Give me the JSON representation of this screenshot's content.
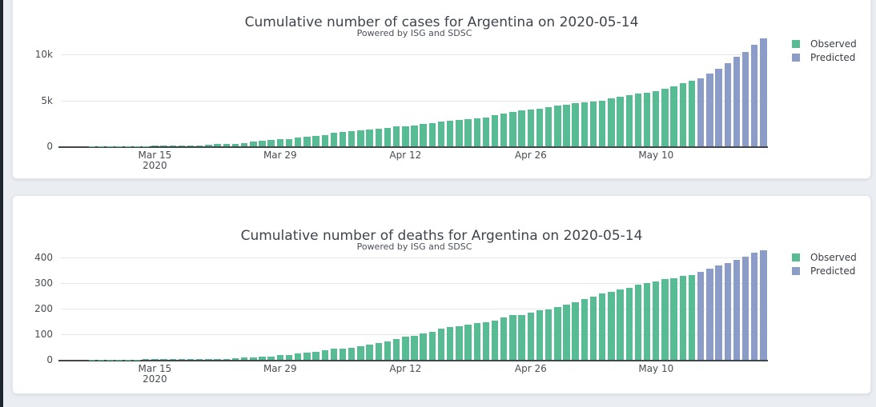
{
  "page": {
    "background_color": "#eaedf2",
    "card_color": "#ffffff",
    "edge_strip_color": "#1d262e"
  },
  "chart_data": [
    {
      "type": "bar",
      "title": "Cumulative number of cases for Argentina on 2020-05-14",
      "subtitle": "Powered by ISG and SDSC",
      "xlabel": "",
      "ylabel": "",
      "x_start_date": "2020-03-05",
      "x_frequency": "daily",
      "x_tick_labels": [
        {
          "day_index": 10,
          "label": "Mar 15",
          "sublabel": "2020"
        },
        {
          "day_index": 24,
          "label": "Mar 29",
          "sublabel": ""
        },
        {
          "day_index": 38,
          "label": "Apr 12",
          "sublabel": ""
        },
        {
          "day_index": 52,
          "label": "Apr 26",
          "sublabel": ""
        },
        {
          "day_index": 66,
          "label": "May 10",
          "sublabel": ""
        }
      ],
      "ylim": [
        0,
        12400
      ],
      "y_ticks": [
        {
          "value": 0,
          "label": "0"
        },
        {
          "value": 5000,
          "label": "5k"
        },
        {
          "value": 10000,
          "label": "10k"
        }
      ],
      "grid": true,
      "legend_position": "top-right",
      "series": [
        {
          "name": "Observed",
          "color": "#57bc93",
          "values": [
            1,
            1,
            2,
            8,
            12,
            17,
            19,
            21,
            31,
            34,
            45,
            56,
            65,
            79,
            97,
            128,
            158,
            225,
            266,
            301,
            387,
            502,
            589,
            690,
            745,
            820,
            966,
            1054,
            1133,
            1265,
            1451,
            1554,
            1628,
            1715,
            1795,
            1894,
            1975,
            2142,
            2208,
            2277,
            2443,
            2571,
            2669,
            2758,
            2839,
            2941,
            3031,
            3144,
            3435,
            3607,
            3780,
            3892,
            4003,
            4127,
            4285,
            4428,
            4532,
            4681,
            4783,
            4887,
            5020,
            5208,
            5371,
            5611,
            5776,
            5866,
            6034,
            6278,
            6563,
            6879,
            7134
          ]
        },
        {
          "name": "Predicted",
          "color": "#8c9cc8",
          "values": [
            7440,
            7940,
            8470,
            9110,
            9790,
            10290,
            11050,
            11760
          ]
        }
      ]
    },
    {
      "type": "bar",
      "title": "Cumulative number of deaths for Argentina on 2020-05-14",
      "subtitle": "Powered by ISG and SDSC",
      "xlabel": "",
      "ylabel": "",
      "x_start_date": "2020-03-05",
      "x_frequency": "daily",
      "x_tick_labels": [
        {
          "day_index": 10,
          "label": "Mar 15",
          "sublabel": "2020"
        },
        {
          "day_index": 24,
          "label": "Mar 29",
          "sublabel": ""
        },
        {
          "day_index": 38,
          "label": "Apr 12",
          "sublabel": ""
        },
        {
          "day_index": 52,
          "label": "Apr 26",
          "sublabel": ""
        },
        {
          "day_index": 66,
          "label": "May 10",
          "sublabel": ""
        }
      ],
      "ylim": [
        0,
        455
      ],
      "y_ticks": [
        {
          "value": 0,
          "label": "0"
        },
        {
          "value": 100,
          "label": "100"
        },
        {
          "value": 200,
          "label": "200"
        },
        {
          "value": 300,
          "label": "300"
        },
        {
          "value": 400,
          "label": "400"
        }
      ],
      "grid": true,
      "legend_position": "top-right",
      "series": [
        {
          "name": "Observed",
          "color": "#57bc93",
          "values": [
            0,
            0,
            0,
            1,
            1,
            1,
            1,
            1,
            1,
            2,
            2,
            2,
            2,
            2,
            3,
            3,
            4,
            4,
            4,
            6,
            8,
            9,
            12,
            13,
            18,
            20,
            24,
            27,
            32,
            36,
            43,
            44,
            48,
            53,
            60,
            65,
            72,
            82,
            89,
            95,
            102,
            110,
            122,
            129,
            132,
            136,
            142,
            147,
            152,
            165,
            173,
            176,
            185,
            192,
            197,
            207,
            215,
            225,
            237,
            246,
            260,
            264,
            273,
            282,
            293,
            300,
            305,
            314,
            319,
            326,
            331
          ]
        },
        {
          "name": "Predicted",
          "color": "#8c9cc8",
          "values": [
            343,
            355,
            367,
            378,
            389,
            403,
            417,
            428
          ]
        }
      ]
    }
  ]
}
